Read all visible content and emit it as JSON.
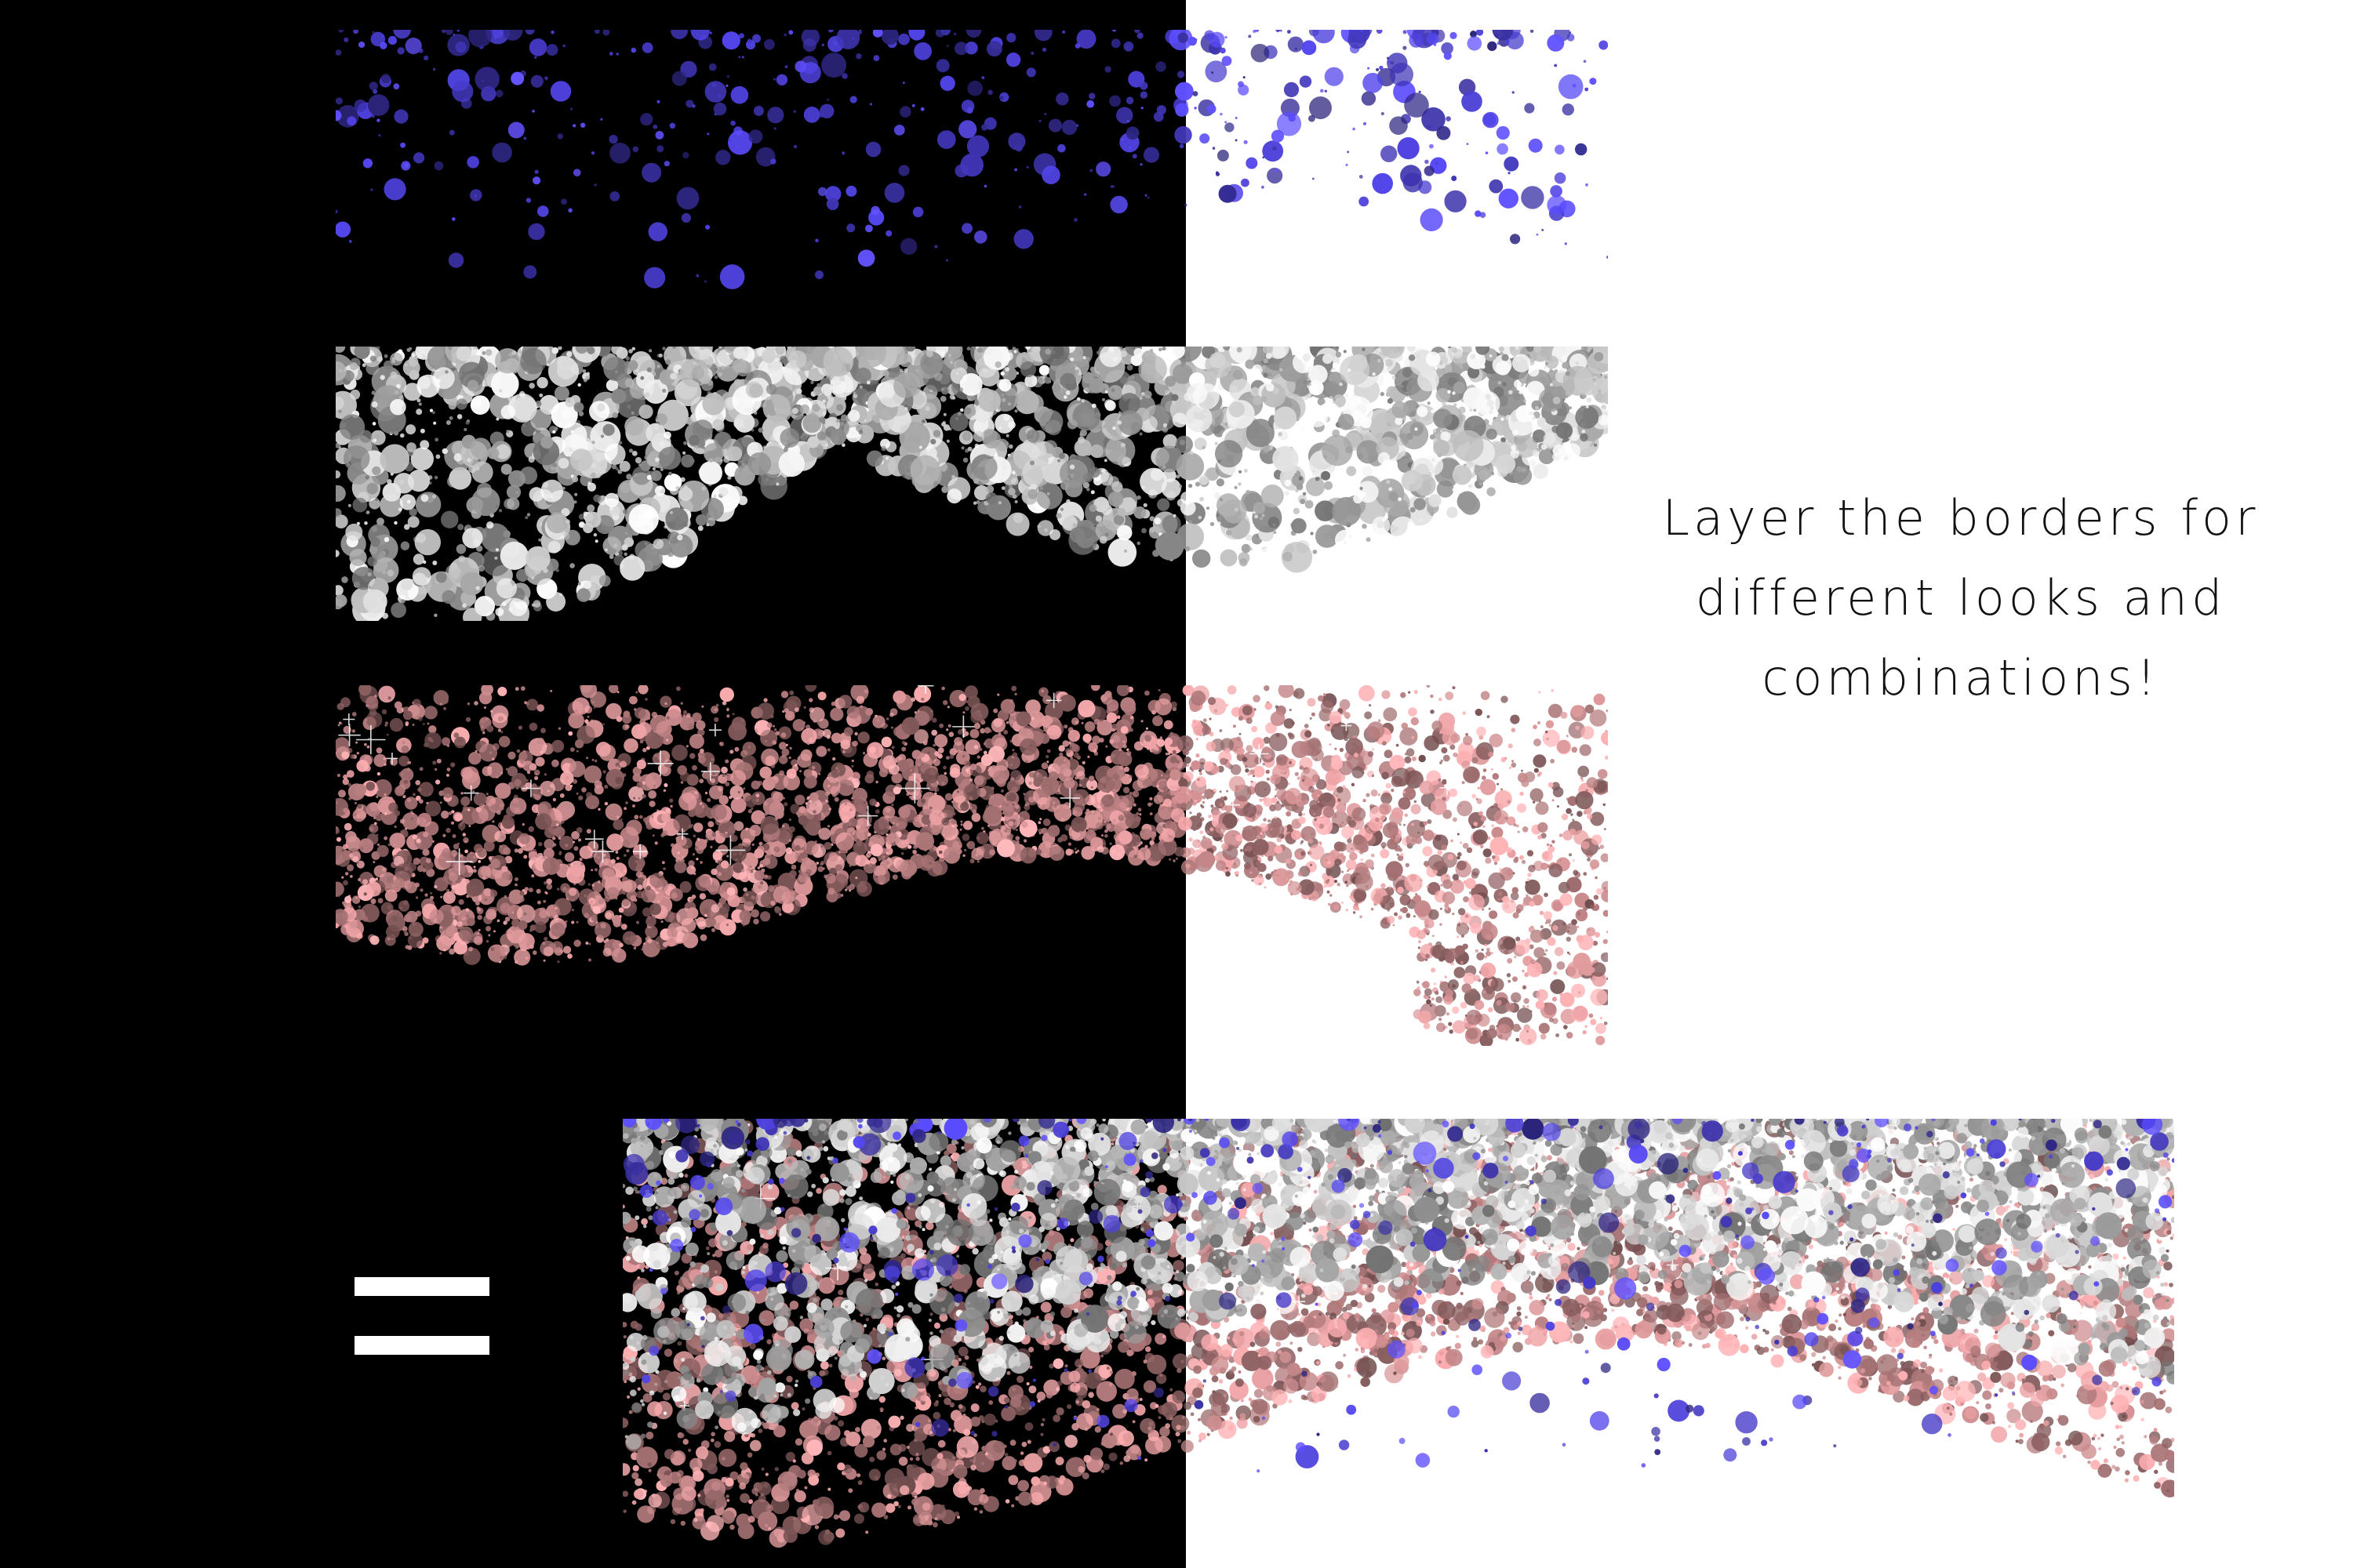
{
  "caption": {
    "line1": "Layer the borders for",
    "line2": "different looks  and",
    "line3": "combinations!"
  },
  "colors": {
    "background_left": "#000000",
    "background_right": "#ffffff",
    "glitter_blue": "#4b3fd6",
    "glitter_silver": "#c8c8c8",
    "glitter_rose": "#c98a8c",
    "equals_sign": "#ffffff",
    "caption_text": "#111111"
  },
  "layers": [
    {
      "name": "blue glitter confetti border",
      "icon": "blue-glitter-border"
    },
    {
      "name": "silver glitter border",
      "icon": "silver-glitter-border"
    },
    {
      "name": "rose gold glitter border",
      "icon": "rose-gold-glitter-border"
    }
  ],
  "operator_icon": "equals-sign",
  "result_icon": "combined-glitter-border"
}
